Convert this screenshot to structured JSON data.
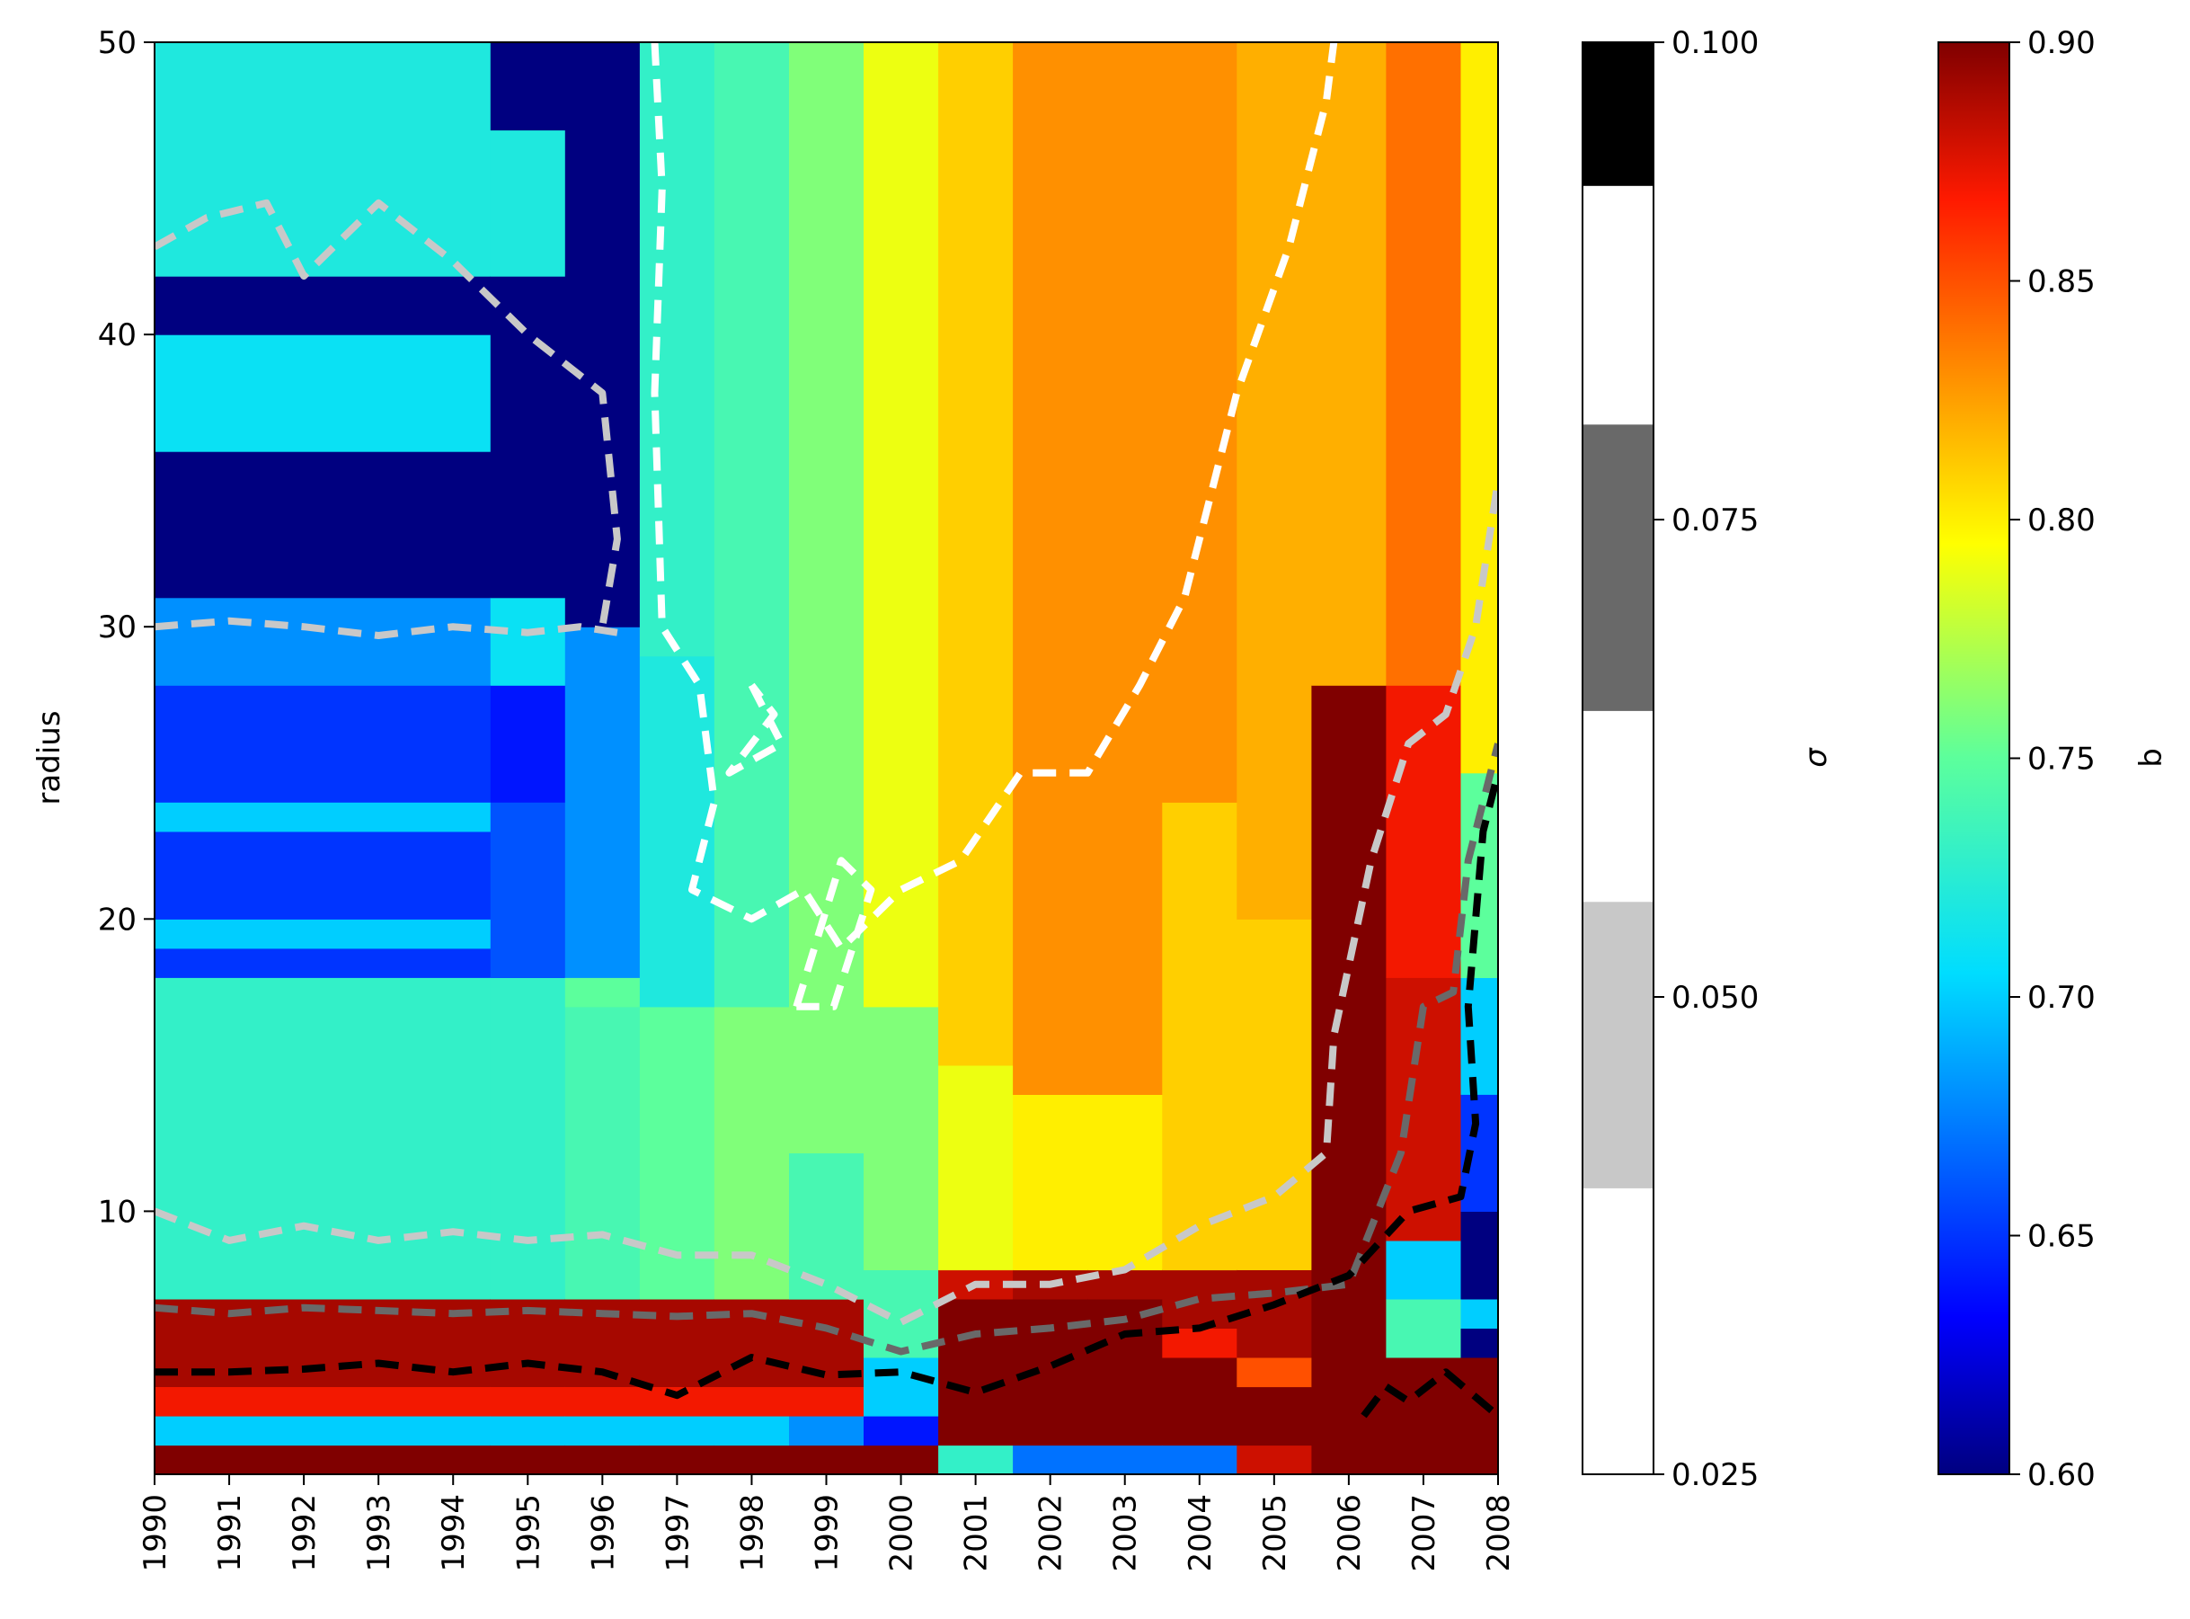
{
  "chart_data": {
    "type": "heatmap",
    "title": "",
    "xlabel": "",
    "ylabel": "radius",
    "x_ticks": [
      "1990",
      "1991",
      "1992",
      "1993",
      "1994",
      "1995",
      "1996",
      "1997",
      "1998",
      "1999",
      "2000",
      "2001",
      "2002",
      "2003",
      "2004",
      "2005",
      "2006",
      "2007",
      "2008"
    ],
    "xlim": [
      1990,
      2008
    ],
    "y_ticks": [
      10,
      20,
      30,
      40,
      50
    ],
    "ylim": [
      1,
      50
    ],
    "grid": false,
    "heatmap": {
      "color_scale": "jet",
      "value_range": [
        0.6,
        0.9
      ],
      "year_profiles": [
        {
          "year": 1990,
          "rows": [
            [
              1,
              2,
              0.9
            ],
            [
              2,
              3,
              0.7
            ],
            [
              3,
              4,
              0.87
            ],
            [
              4,
              7,
              0.89
            ],
            [
              7,
              18,
              0.73
            ],
            [
              18,
              19,
              0.65
            ],
            [
              19,
              20,
              0.7
            ],
            [
              20,
              23,
              0.65
            ],
            [
              23,
              24,
              0.7
            ],
            [
              24,
              28,
              0.65
            ],
            [
              28,
              31,
              0.68
            ],
            [
              31,
              36,
              0.6
            ],
            [
              36,
              40,
              0.71
            ],
            [
              40,
              42,
              0.6
            ],
            [
              42,
              50,
              0.72
            ]
          ]
        },
        {
          "year": 1995,
          "rows": [
            [
              1,
              2,
              0.9
            ],
            [
              2,
              3,
              0.7
            ],
            [
              3,
              4,
              0.87
            ],
            [
              4,
              7,
              0.89
            ],
            [
              7,
              18,
              0.73
            ],
            [
              18,
              24,
              0.66
            ],
            [
              24,
              28,
              0.64
            ],
            [
              28,
              31,
              0.71
            ],
            [
              31,
              42,
              0.6
            ],
            [
              42,
              47,
              0.72
            ],
            [
              47,
              50,
              0.6
            ]
          ]
        },
        {
          "year": 1996,
          "rows": [
            [
              1,
              2,
              0.9
            ],
            [
              2,
              3,
              0.7
            ],
            [
              3,
              4,
              0.87
            ],
            [
              4,
              7,
              0.89
            ],
            [
              7,
              17,
              0.74
            ],
            [
              17,
              18,
              0.75
            ],
            [
              18,
              28,
              0.68
            ],
            [
              28,
              30,
              0.68
            ],
            [
              30,
              50,
              0.6
            ]
          ]
        },
        {
          "year": 1997,
          "rows": [
            [
              1,
              2,
              0.9
            ],
            [
              2,
              3,
              0.7
            ],
            [
              3,
              4,
              0.87
            ],
            [
              4,
              7,
              0.89
            ],
            [
              7,
              17,
              0.75
            ],
            [
              17,
              29,
              0.72
            ],
            [
              29,
              50,
              0.73
            ]
          ]
        },
        {
          "year": 1998,
          "rows": [
            [
              1,
              2,
              0.9
            ],
            [
              2,
              3,
              0.7
            ],
            [
              3,
              4,
              0.87
            ],
            [
              4,
              7,
              0.89
            ],
            [
              7,
              17,
              0.76
            ],
            [
              17,
              30,
              0.74
            ],
            [
              30,
              50,
              0.74
            ]
          ]
        },
        {
          "year": 1999,
          "rows": [
            [
              1,
              2,
              0.9
            ],
            [
              2,
              3,
              0.68
            ],
            [
              3,
              4,
              0.87
            ],
            [
              4,
              7,
              0.89
            ],
            [
              7,
              12,
              0.74
            ],
            [
              12,
              50,
              0.76
            ]
          ]
        },
        {
          "year": 2000,
          "rows": [
            [
              1,
              2,
              0.9
            ],
            [
              2,
              3,
              0.64
            ],
            [
              3,
              5,
              0.7
            ],
            [
              5,
              8,
              0.74
            ],
            [
              8,
              17,
              0.76
            ],
            [
              17,
              50,
              0.79
            ]
          ]
        },
        {
          "year": 2001,
          "rows": [
            [
              1,
              2,
              0.73
            ],
            [
              2,
              7,
              0.9
            ],
            [
              7,
              8,
              0.88
            ],
            [
              8,
              15,
              0.79
            ],
            [
              15,
              50,
              0.81
            ]
          ]
        },
        {
          "year": 2002,
          "rows": [
            [
              1,
              2,
              0.67
            ],
            [
              2,
              7,
              0.9
            ],
            [
              7,
              8,
              0.89
            ],
            [
              8,
              14,
              0.8
            ],
            [
              14,
              50,
              0.83
            ]
          ]
        },
        {
          "year": 2003,
          "rows": [
            [
              1,
              2,
              0.67
            ],
            [
              2,
              7,
              0.9
            ],
            [
              7,
              8,
              0.89
            ],
            [
              8,
              14,
              0.8
            ],
            [
              14,
              50,
              0.83
            ]
          ]
        },
        {
          "year": 2004,
          "rows": [
            [
              1,
              2,
              0.67
            ],
            [
              2,
              5,
              0.9
            ],
            [
              5,
              6,
              0.87
            ],
            [
              6,
              8,
              0.89
            ],
            [
              8,
              24,
              0.81
            ],
            [
              24,
              50,
              0.83
            ]
          ]
        },
        {
          "year": 2005,
          "rows": [
            [
              1,
              2,
              0.88
            ],
            [
              2,
              4,
              0.9
            ],
            [
              4,
              5,
              0.85
            ],
            [
              5,
              8,
              0.89
            ],
            [
              8,
              20,
              0.81
            ],
            [
              20,
              50,
              0.82
            ]
          ]
        },
        {
          "year": 2006,
          "rows": [
            [
              1,
              8,
              0.9
            ],
            [
              8,
              28,
              0.9
            ],
            [
              28,
              50,
              0.82
            ]
          ]
        },
        {
          "year": 2007,
          "rows": [
            [
              1,
              5,
              0.9
            ],
            [
              5,
              7,
              0.74
            ],
            [
              7,
              9,
              0.7
            ],
            [
              9,
              18,
              0.88
            ],
            [
              18,
              28,
              0.87
            ],
            [
              28,
              50,
              0.84
            ]
          ]
        },
        {
          "year": 2008,
          "rows": [
            [
              1,
              5,
              0.9
            ],
            [
              5,
              6,
              0.6
            ],
            [
              6,
              7,
              0.7
            ],
            [
              7,
              10,
              0.6
            ],
            [
              10,
              14,
              0.65
            ],
            [
              14,
              18,
              0.7
            ],
            [
              18,
              25,
              0.75
            ],
            [
              25,
              28,
              0.8
            ],
            [
              28,
              50,
              0.8
            ]
          ]
        }
      ]
    },
    "contours": [
      {
        "level": 0.025,
        "color": "#ffffff",
        "points": [
          [
            1996.7,
            50
          ],
          [
            1996.8,
            45
          ],
          [
            1996.7,
            38
          ],
          [
            1996.8,
            30
          ],
          [
            1997.3,
            28
          ],
          [
            1997.5,
            24
          ],
          [
            1997.2,
            21
          ],
          [
            1998.0,
            20
          ],
          [
            1998.7,
            21
          ],
          [
            1999.2,
            19
          ],
          [
            2000.0,
            21
          ],
          [
            2000.8,
            22
          ],
          [
            2001.6,
            25
          ],
          [
            2002.5,
            25
          ],
          [
            2003.2,
            28
          ],
          [
            2003.8,
            31
          ],
          [
            2004.5,
            38
          ],
          [
            2005.2,
            43
          ],
          [
            2005.7,
            48
          ],
          [
            2005.8,
            50
          ]
        ]
      },
      {
        "level": 0.025,
        "color": "#ffffff",
        "points": [
          [
            1998.0,
            28
          ],
          [
            1998.4,
            26
          ],
          [
            1997.7,
            25
          ],
          [
            1998.3,
            27
          ],
          [
            1998.0,
            28
          ]
        ]
      },
      {
        "level": 0.025,
        "color": "#ffffff",
        "points": [
          [
            1998.6,
            17
          ],
          [
            1999.2,
            22
          ],
          [
            1999.6,
            21
          ],
          [
            1999.1,
            17
          ],
          [
            1998.6,
            17
          ]
        ]
      },
      {
        "level": 0.05,
        "color": "#c8c8c8",
        "points": [
          [
            1990,
            30
          ],
          [
            1991,
            30.2
          ],
          [
            1992,
            30
          ],
          [
            1993,
            29.7
          ],
          [
            1994,
            30
          ],
          [
            1995,
            29.8
          ],
          [
            1995.7,
            30
          ],
          [
            1996.2,
            29.8
          ]
        ]
      },
      {
        "level": 0.05,
        "color": "#c8c8c8",
        "points": [
          [
            1990,
            10
          ],
          [
            1991,
            9
          ],
          [
            1992,
            9.5
          ],
          [
            1993,
            9
          ],
          [
            1994,
            9.3
          ],
          [
            1995,
            9
          ],
          [
            1996,
            9.2
          ],
          [
            1997,
            8.5
          ],
          [
            1998,
            8.5
          ],
          [
            1999,
            7.5
          ],
          [
            2000,
            6.2
          ],
          [
            2001,
            7.5
          ],
          [
            2002,
            7.5
          ],
          [
            2003,
            8
          ],
          [
            2004,
            9.5
          ],
          [
            2005,
            10.5
          ],
          [
            2005.7,
            12
          ],
          [
            2005.8,
            16
          ],
          [
            2006.3,
            22
          ],
          [
            2006.8,
            26
          ],
          [
            2007.3,
            27
          ],
          [
            2007.7,
            30
          ],
          [
            2008,
            35
          ]
        ]
      },
      {
        "level": 0.05,
        "color": "#c8c8c8",
        "points": [
          [
            1990,
            43
          ],
          [
            1990.7,
            44
          ],
          [
            1991.5,
            44.5
          ],
          [
            1992,
            42
          ],
          [
            1993,
            44.5
          ],
          [
            1994,
            42.5
          ],
          [
            1995,
            40
          ],
          [
            1996,
            38
          ],
          [
            1996.2,
            33
          ],
          [
            1996.0,
            30
          ]
        ]
      },
      {
        "level": 0.075,
        "color": "#696969",
        "points": [
          [
            1990,
            6.7
          ],
          [
            1991,
            6.5
          ],
          [
            1992,
            6.7
          ],
          [
            1993,
            6.6
          ],
          [
            1994,
            6.5
          ],
          [
            1995,
            6.6
          ],
          [
            1996,
            6.5
          ],
          [
            1997,
            6.4
          ],
          [
            1998,
            6.5
          ],
          [
            1999,
            6
          ],
          [
            2000,
            5.2
          ],
          [
            2001,
            5.8
          ],
          [
            2002,
            6
          ],
          [
            2003,
            6.3
          ],
          [
            2004,
            7
          ],
          [
            2005,
            7.2
          ],
          [
            2006,
            7.5
          ],
          [
            2006.7,
            12
          ],
          [
            2007.0,
            17
          ],
          [
            2007.4,
            17.5
          ],
          [
            2007.6,
            22
          ],
          [
            2008,
            26
          ]
        ]
      },
      {
        "level": 0.1,
        "color": "#000000",
        "points": [
          [
            1990,
            4.5
          ],
          [
            1991,
            4.5
          ],
          [
            1992,
            4.6
          ],
          [
            1993,
            4.8
          ],
          [
            1994,
            4.5
          ],
          [
            1995,
            4.8
          ],
          [
            1996,
            4.5
          ],
          [
            1997,
            3.7
          ],
          [
            1998,
            5
          ],
          [
            1999,
            4.4
          ],
          [
            2000,
            4.5
          ],
          [
            2001,
            3.8
          ],
          [
            2002,
            4.7
          ],
          [
            2003,
            5.8
          ],
          [
            2004,
            6
          ],
          [
            2005,
            6.8
          ],
          [
            2006,
            7.8
          ],
          [
            2006.8,
            10
          ],
          [
            2007.5,
            10.5
          ],
          [
            2007.7,
            13
          ],
          [
            2007.6,
            17
          ],
          [
            2007.8,
            23
          ],
          [
            2008,
            25
          ]
        ]
      },
      {
        "level": 0.1,
        "color": "#000000",
        "points": [
          [
            2006.2,
            3
          ],
          [
            2006.5,
            4
          ],
          [
            2006.8,
            3.5
          ],
          [
            2007.3,
            4.5
          ],
          [
            2008,
            3
          ]
        ]
      }
    ],
    "colorbars": [
      {
        "label": "σ",
        "type": "discrete",
        "ticks": [
          "0.025",
          "0.050",
          "0.075",
          "0.100"
        ],
        "range": [
          0.025,
          0.1
        ],
        "bands": [
          [
            "#ffffff",
            0.025,
            0.04
          ],
          [
            "#c8c8c8",
            0.04,
            0.055
          ],
          [
            "#ffffff",
            0.055,
            0.065
          ],
          [
            "#696969",
            0.065,
            0.08
          ],
          [
            "#ffffff",
            0.08,
            0.0925
          ],
          [
            "#000000",
            0.0925,
            0.1
          ]
        ]
      },
      {
        "label": "b",
        "type": "continuous",
        "color_scale": "jet",
        "ticks": [
          "0.60",
          "0.65",
          "0.70",
          "0.75",
          "0.80",
          "0.85",
          "0.90"
        ],
        "range": [
          0.6,
          0.9
        ]
      }
    ]
  }
}
